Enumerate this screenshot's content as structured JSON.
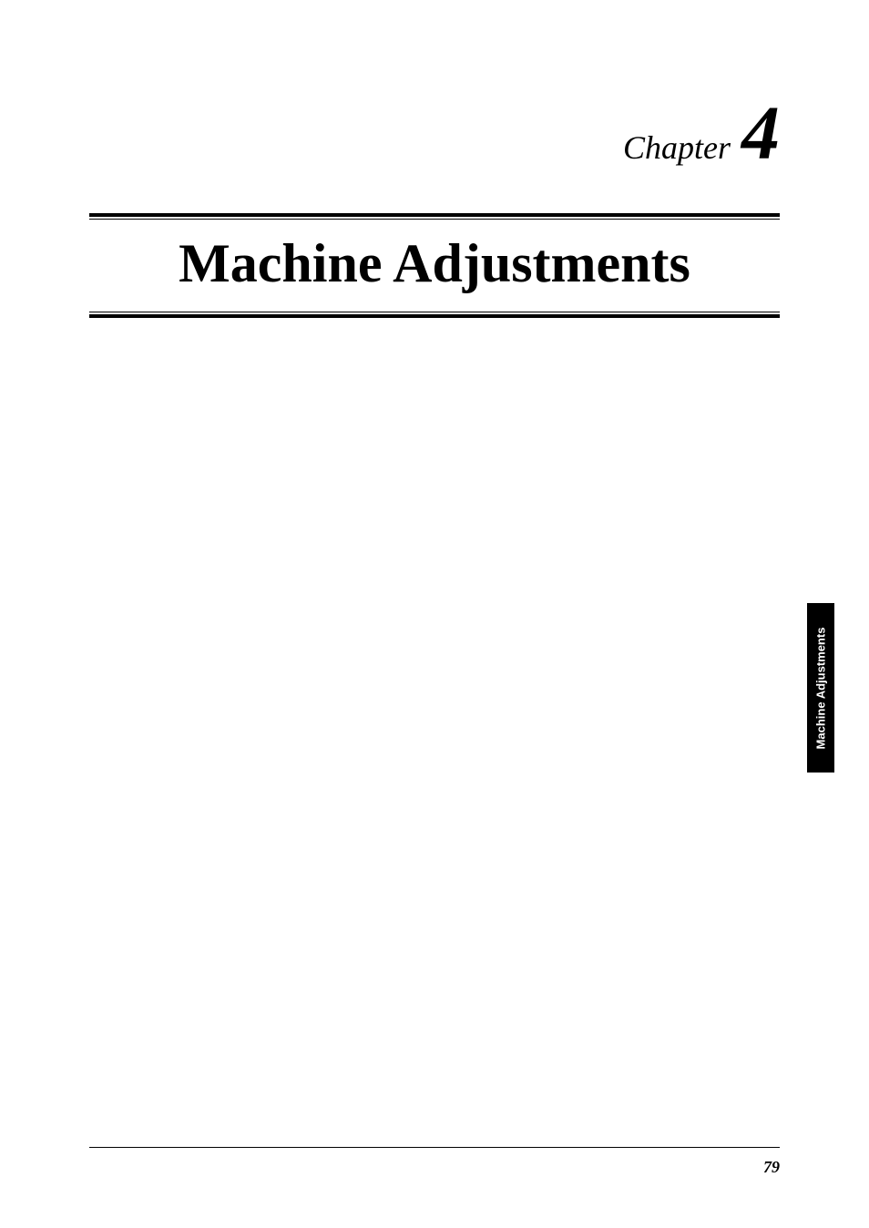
{
  "chapter": {
    "label": "Chapter",
    "number": "4",
    "title": "Machine Adjustments"
  },
  "sideTab": {
    "text": "Machine Adjustments"
  },
  "footer": {
    "pageNumber": "79"
  },
  "colors": {
    "background": "#ffffff",
    "text": "#000000",
    "tabBackground": "#000000",
    "tabText": "#ffffff"
  },
  "typography": {
    "chapterLabelSize": 36,
    "chapterNumberSize": 84,
    "titleSize": 60,
    "sideTabSize": 13,
    "pageNumberSize": 18
  }
}
